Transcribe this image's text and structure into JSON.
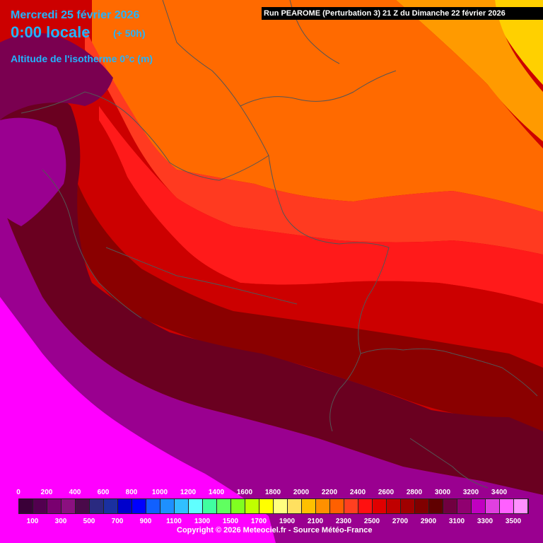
{
  "header": {
    "date_text": "Mercredi 25 février 2026",
    "time_text": "0:00 locale",
    "lead_text": "(+ 50h)",
    "param_text": "Altitude de l'isotherme 0°c (m)"
  },
  "run_banner": "Run PEAROME (Perturbation 3) 21 Z du Dimanche 22 février 2026",
  "legend": {
    "top_labels": [
      "0",
      "200",
      "400",
      "600",
      "800",
      "1000",
      "1200",
      "1400",
      "1600",
      "1800",
      "2000",
      "2200",
      "2400",
      "2600",
      "2800",
      "3000",
      "3200",
      "3400"
    ],
    "bottom_labels": [
      "100",
      "300",
      "500",
      "700",
      "900",
      "1100",
      "1300",
      "1500",
      "1700",
      "1900",
      "2100",
      "2300",
      "2500",
      "2700",
      "2900",
      "3100",
      "3300",
      "3500"
    ],
    "colors": [
      "#3a0038",
      "#52004f",
      "#7a0070",
      "#8b1080",
      "#4a0a4a",
      "#2a2a80",
      "#1a30a0",
      "#0000cc",
      "#0000ff",
      "#1060ff",
      "#1e90ff",
      "#30c0ff",
      "#60ffff",
      "#40ffa0",
      "#60ff60",
      "#80ff20",
      "#c0ff00",
      "#ffff00",
      "#ffff80",
      "#ffe060",
      "#ffc000",
      "#ff9000",
      "#ff6000",
      "#ff4020",
      "#ff1010",
      "#e00000",
      "#c00000",
      "#a00000",
      "#800000",
      "#600000",
      "#700040",
      "#900070",
      "#c000c0",
      "#e040e0",
      "#ff60ff",
      "#ff90ff"
    ]
  },
  "copyright": "Copyright © 2026 Meteociel.fr - Source Météo-France",
  "map_colors": {
    "magenta": "#ff00ff",
    "purple": "#9a0090",
    "plum": "#7a0050",
    "maroon": "#6a0020",
    "darkred": "#8a0000",
    "red": "#cc0000",
    "bright_red": "#ff1a1a",
    "redorange": "#ff3a20",
    "orange": "#ff6a00",
    "amber": "#ff9a00",
    "yellow": "#ffd000",
    "border": "#555555"
  }
}
